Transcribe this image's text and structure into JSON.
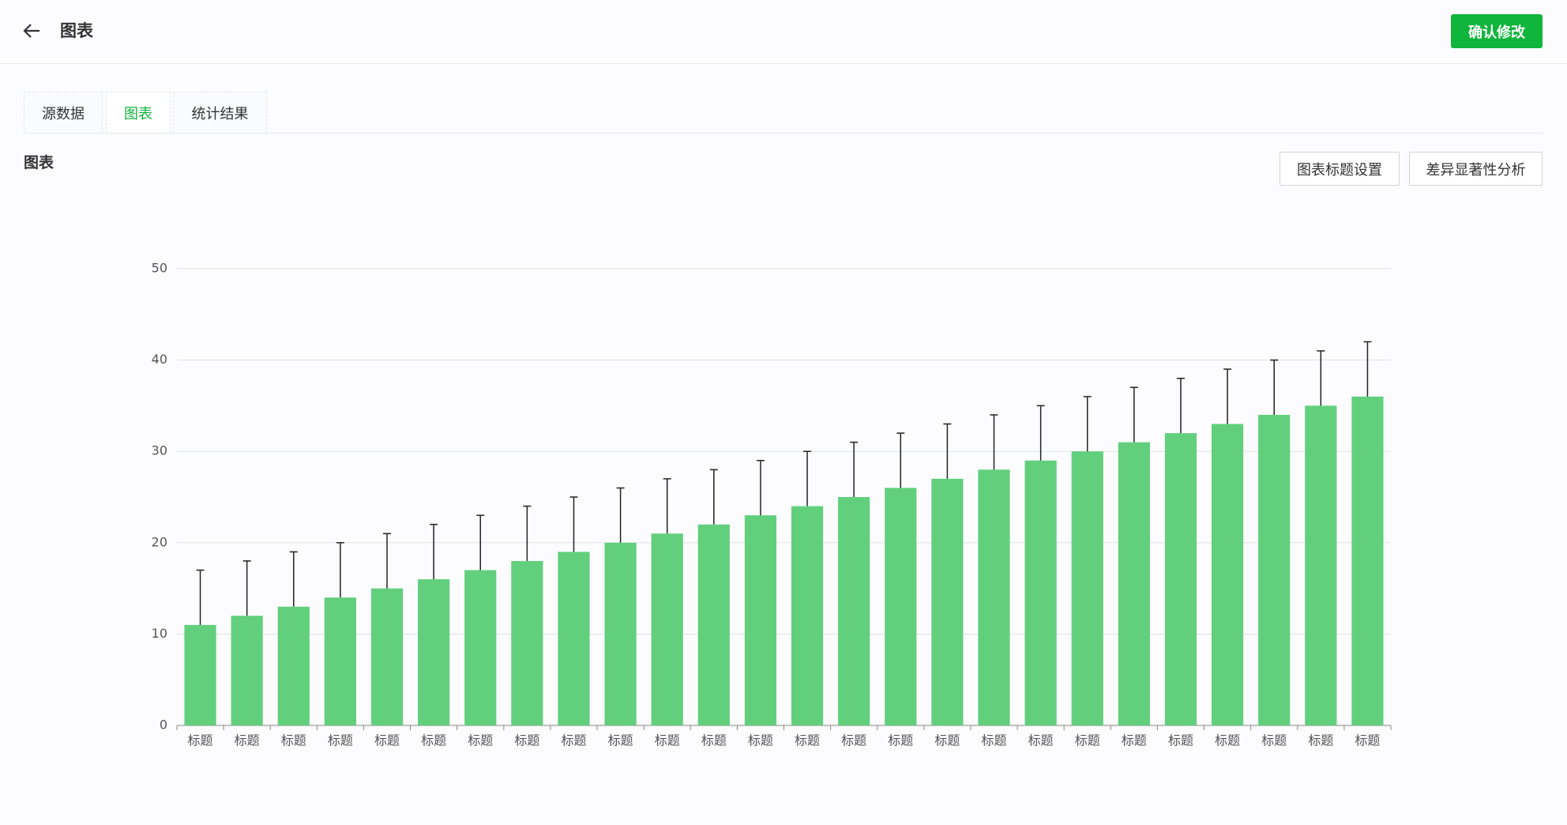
{
  "header": {
    "title": "图表",
    "button": "确认修改"
  },
  "tabs": [
    "源数据",
    "图表",
    "统计结果"
  ],
  "active_tab": 1,
  "section": {
    "title": "图表",
    "buttons": [
      "图表标题设置",
      "差异显著性分析"
    ]
  },
  "chart_data": {
    "type": "bar",
    "categories": [
      "标题",
      "标题",
      "标题",
      "标题",
      "标题",
      "标题",
      "标题",
      "标题",
      "标题",
      "标题",
      "标题",
      "标题",
      "标题",
      "标题",
      "标题",
      "标题",
      "标题",
      "标题",
      "标题",
      "标题",
      "标题",
      "标题",
      "标题",
      "标题",
      "标题",
      "标题"
    ],
    "values": [
      11,
      12,
      13,
      14,
      15,
      16,
      17,
      18,
      19,
      20,
      21,
      22,
      23,
      24,
      25,
      26,
      27,
      28,
      29,
      30,
      31,
      32,
      33,
      34,
      35,
      36
    ],
    "errors": [
      6,
      6,
      6,
      6,
      6,
      6,
      6,
      6,
      6,
      6,
      6,
      6,
      6,
      6,
      6,
      6,
      6,
      6,
      6,
      6,
      6,
      6,
      6,
      6,
      6,
      6
    ],
    "color": "#62cf7d",
    "ylim": [
      0,
      50
    ],
    "yticks": [
      0,
      10,
      20,
      30,
      40,
      50
    ],
    "grid": true
  }
}
